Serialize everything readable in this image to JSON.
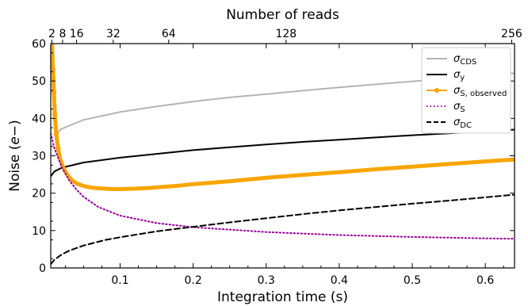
{
  "chart_data": {
    "type": "line",
    "xlabel": "Integration time (s)",
    "ylabel": "Noise (e−)",
    "top_xlabel": "Number of reads",
    "xlim": [
      0.005,
      0.64
    ],
    "ylim": [
      0,
      60
    ],
    "x_ticks": [
      0.1,
      0.2,
      0.3,
      0.4,
      0.5,
      0.6
    ],
    "x_tick_labels": [
      "0.1",
      "0.2",
      "0.3",
      "0.4",
      "0.5",
      "0.6"
    ],
    "y_ticks": [
      0,
      10,
      20,
      30,
      40,
      50,
      60
    ],
    "y_tick_labels": [
      "0",
      "10",
      "20",
      "30",
      "40",
      "50",
      "60"
    ],
    "top_ticks": [
      {
        "label": "2",
        "x": 0.0066
      },
      {
        "label": "8",
        "x": 0.0212
      },
      {
        "label": "16",
        "x": 0.0404
      },
      {
        "label": "32",
        "x": 0.0906
      },
      {
        "label": "64",
        "x": 0.1665
      },
      {
        "label": "128",
        "x": 0.3272
      },
      {
        "label": "256",
        "x": 0.6361
      }
    ],
    "grid": false,
    "legend_position": "top-right",
    "series": [
      {
        "key": "cds",
        "legend": "σ",
        "legend_sub": "CDS",
        "color": "#b4b4b4",
        "style": "solid",
        "x": [
          0.01,
          0.02,
          0.05,
          0.1,
          0.15,
          0.2,
          0.25,
          0.3,
          0.35,
          0.4,
          0.45,
          0.5,
          0.55,
          0.6,
          0.64
        ],
        "y": [
          35.5,
          37.2,
          39.6,
          41.7,
          43.2,
          44.5,
          45.6,
          46.5,
          47.4,
          48.3,
          49.1,
          49.9,
          50.6,
          51.4,
          52.1
        ]
      },
      {
        "key": "sigma_y",
        "legend": "σ",
        "legend_sub": "y",
        "color": "#000000",
        "style": "solid",
        "x": [
          0.005,
          0.01,
          0.02,
          0.05,
          0.1,
          0.15,
          0.2,
          0.25,
          0.3,
          0.35,
          0.4,
          0.45,
          0.5,
          0.55,
          0.6,
          0.64
        ],
        "y": [
          24.5,
          25.8,
          26.8,
          28.2,
          29.5,
          30.5,
          31.5,
          32.3,
          33.0,
          33.7,
          34.3,
          34.9,
          35.5,
          36.0,
          36.5,
          37.0
        ]
      },
      {
        "key": "observed",
        "legend": "σ",
        "legend_sub": "S, observed",
        "color": "#f7a500",
        "style": "solid-markers",
        "x": [
          0.0066,
          0.0081,
          0.0093,
          0.0106,
          0.0125,
          0.015,
          0.0175,
          0.0212,
          0.025,
          0.03,
          0.035,
          0.0404,
          0.05,
          0.06,
          0.07,
          0.08,
          0.0906,
          0.1,
          0.11,
          0.12,
          0.14,
          0.16,
          0.18,
          0.2,
          0.25,
          0.3,
          0.35,
          0.4,
          0.45,
          0.5,
          0.55,
          0.6,
          0.64
        ],
        "y": [
          60.0,
          53.0,
          47.0,
          41.0,
          36.0,
          32.0,
          29.5,
          27.3,
          25.8,
          24.3,
          23.3,
          22.6,
          21.9,
          21.5,
          21.3,
          21.2,
          21.1,
          21.1,
          21.15,
          21.2,
          21.4,
          21.7,
          22.0,
          22.4,
          23.2,
          24.1,
          24.9,
          25.6,
          26.4,
          27.1,
          27.8,
          28.5,
          29.0
        ]
      },
      {
        "key": "sigma_s",
        "legend": "σ",
        "legend_sub": "S",
        "color": "#990099",
        "style": "dotted",
        "x": [
          0.005,
          0.01,
          0.02,
          0.03,
          0.04,
          0.05,
          0.07,
          0.1,
          0.15,
          0.2,
          0.3,
          0.4,
          0.5,
          0.6,
          0.64
        ],
        "y": [
          36.0,
          32.0,
          27.0,
          23.5,
          21.0,
          19.0,
          16.3,
          14.0,
          12.0,
          10.9,
          9.6,
          8.8,
          8.3,
          7.9,
          7.8
        ]
      },
      {
        "key": "sigma_dc",
        "legend": "σ",
        "legend_sub": "DC",
        "color": "#000000",
        "style": "dashed",
        "x": [
          0.005,
          0.01,
          0.02,
          0.03,
          0.05,
          0.08,
          0.1,
          0.15,
          0.2,
          0.25,
          0.3,
          0.35,
          0.4,
          0.45,
          0.5,
          0.55,
          0.6,
          0.64
        ],
        "y": [
          1.0,
          2.2,
          3.6,
          4.6,
          6.0,
          7.5,
          8.2,
          9.8,
          11.0,
          12.2,
          13.3,
          14.4,
          15.4,
          16.3,
          17.2,
          18.0,
          18.9,
          19.6
        ]
      }
    ]
  }
}
